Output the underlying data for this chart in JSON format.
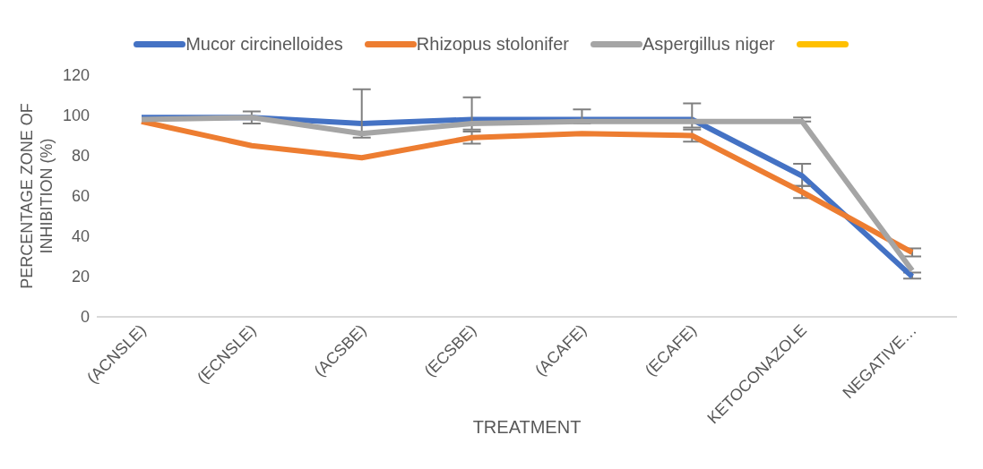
{
  "chart_data": {
    "type": "line",
    "xlabel": "TREATMENT",
    "ylabel": "PERCENTAGE ZONE OF INHIBITION (%)",
    "categories": [
      "(ACNSLE)",
      "(ECNSLE)",
      "(ACSBE)",
      "(ECSBE)",
      "(ACAFE)",
      "(ECAFE)",
      "KETOCONAZOLE",
      "NEGATIVE…"
    ],
    "series": [
      {
        "name": "Mucor circinelloides",
        "color": "#4472c4",
        "values": [
          99,
          99,
          96,
          98,
          98,
          98,
          70,
          20
        ],
        "errors": [
          null,
          null,
          null,
          null,
          null,
          null,
          [
            65,
            76
          ],
          [
            19,
            22
          ]
        ]
      },
      {
        "name": "Rhizopus stolonifer",
        "color": "#ed7d31",
        "values": [
          97,
          85,
          79,
          89,
          91,
          90,
          62,
          32
        ],
        "errors": [
          null,
          null,
          null,
          [
            86,
            92
          ],
          null,
          [
            87,
            93
          ],
          [
            59,
            65
          ],
          [
            30,
            34
          ]
        ]
      },
      {
        "name": "Aspergillus niger",
        "color": "#a5a5a5",
        "values": [
          98,
          99,
          91,
          96,
          97,
          97,
          97,
          23
        ],
        "errors": [
          null,
          [
            96,
            102
          ],
          [
            89,
            113
          ],
          [
            93,
            109
          ],
          [
            96,
            103
          ],
          [
            94,
            106
          ],
          [
            97,
            99
          ],
          null
        ]
      },
      {
        "color": "#ffc000",
        "values": [
          null,
          null,
          null,
          null,
          null,
          null,
          null,
          null
        ]
      }
    ],
    "ylim": [
      0,
      120
    ],
    "yticks": [
      0,
      20,
      40,
      60,
      80,
      100,
      120
    ],
    "grid": false,
    "legend": "top",
    "marker": "none",
    "line_style": "solid"
  }
}
